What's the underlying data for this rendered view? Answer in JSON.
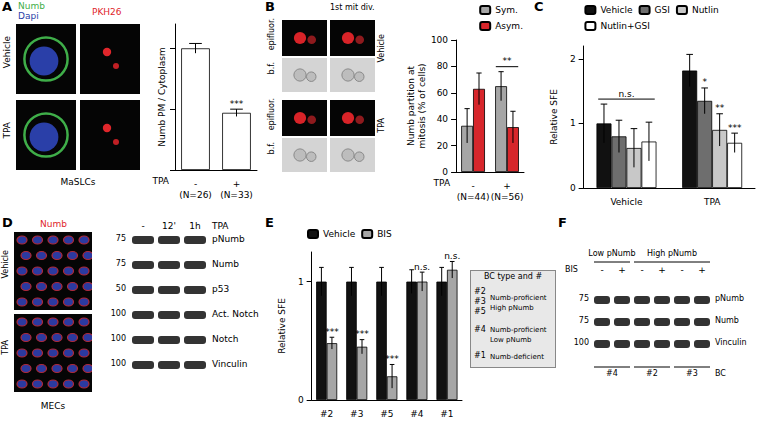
{
  "chart_data": [
    {
      "type": "bar",
      "title": "A",
      "y_label": "Numb PM / Cytoplasm",
      "x_label": "TPA",
      "categories": [
        "-",
        "+"
      ],
      "category_notes": [
        "(N=26)",
        "(N=33)"
      ],
      "series": [
        {
          "color": "#ffffff",
          "values": [
            1.0,
            0.47
          ],
          "errors": [
            0.04,
            0.03
          ],
          "annotations": [
            null,
            "***"
          ]
        }
      ],
      "ylim": [
        0,
        1.2
      ],
      "yticks": [
        0,
        0.5,
        1
      ],
      "tick_labels": "x"
    },
    {
      "type": "bar",
      "title": "B",
      "y_label": "Numb partition at mitosis (% of cells)",
      "x_label": "TPA",
      "categories": [
        "-",
        "+"
      ],
      "category_notes": [
        "(N=44)",
        "(N=56)"
      ],
      "series": [
        {
          "name": "Sym.",
          "color": "#a6a6a6",
          "values": [
            35,
            65
          ],
          "errors": [
            13,
            11
          ]
        },
        {
          "name": "Asym.",
          "color": "#d7262b",
          "values": [
            63,
            34
          ],
          "errors": [
            12,
            12
          ]
        }
      ],
      "group_annotations": [
        null,
        "**"
      ],
      "ylim": [
        0,
        100
      ],
      "yticks": [
        0,
        20,
        40,
        60,
        80,
        100
      ],
      "legend": "upper right"
    },
    {
      "type": "bar",
      "title": "C",
      "y_label": "Relative SFE",
      "categories": [
        "Vehicle",
        "TPA"
      ],
      "series": [
        {
          "name": "Vehicle",
          "color": "#111111",
          "values": [
            1.0,
            1.82
          ],
          "errors": [
            0.3,
            0.25
          ]
        },
        {
          "name": "GSI",
          "color": "#6e6e6e",
          "values": [
            0.8,
            1.35
          ],
          "errors": [
            0.25,
            0.2
          ],
          "annotations": [
            null,
            "*"
          ]
        },
        {
          "name": "Nutlin",
          "color": "#c8c8c8",
          "values": [
            0.62,
            0.9
          ],
          "errors": [
            0.3,
            0.25
          ],
          "annotations": [
            null,
            "**"
          ]
        },
        {
          "name": "Nutlin+GSI",
          "color": "#ffffff",
          "values": [
            0.72,
            0.7
          ],
          "errors": [
            0.3,
            0.15
          ],
          "annotations": [
            null,
            "***"
          ]
        }
      ],
      "group_annotations": [
        "n.s.",
        null
      ],
      "ylim": [
        0,
        2.2
      ],
      "yticks": [
        0,
        1,
        2
      ],
      "legend": "top"
    },
    {
      "type": "bar",
      "title": "E",
      "y_label": "Relative SFE",
      "categories": [
        "#2",
        "#3",
        "#5",
        "#4",
        "#1"
      ],
      "series": [
        {
          "name": "Vehicle",
          "color": "#111111",
          "values": [
            1,
            1,
            1,
            1,
            1
          ],
          "errors": [
            0.12,
            0.12,
            0.12,
            0.1,
            0.12
          ]
        },
        {
          "name": "BIS",
          "color": "#a6a6a6",
          "values": [
            0.48,
            0.45,
            0.2,
            1.0,
            1.1
          ],
          "errors": [
            0.05,
            0.06,
            0.1,
            0.08,
            0.07
          ],
          "annotations": [
            "***",
            "***",
            "***",
            "n.s.",
            "n.s."
          ]
        }
      ],
      "ylim": [
        0,
        1.25
      ],
      "yticks": [
        0,
        1
      ],
      "legend": "upper left"
    }
  ],
  "figure": {
    "A": {
      "letter": "A",
      "image_header": [
        "Numb",
        "Dapi",
        "PKH26"
      ],
      "rows": [
        "Vehicle",
        "TPA"
      ],
      "caption": "MaSLCs"
    },
    "B": {
      "letter": "B",
      "header": "1st mit div.",
      "modes": [
        "epifluor.",
        "b.f."
      ],
      "rows": [
        "Vehicle",
        "TPA"
      ]
    },
    "D": {
      "letter": "D",
      "stain": "Numb",
      "rows": [
        "Vehicle",
        "TPA"
      ],
      "caption": "MECs",
      "blot": {
        "treatment": "TPA",
        "lanes": [
          "-",
          "12'",
          "1h"
        ],
        "bands": [
          {
            "label": "pNumb",
            "mw": 75
          },
          {
            "label": "Numb",
            "mw": 75
          },
          {
            "label": "p53",
            "mw": 50
          },
          {
            "label": "Act. Notch",
            "mw": 100
          },
          {
            "label": "Notch",
            "mw": 100
          },
          {
            "label": "Vinculin",
            "mw": 100
          }
        ]
      }
    },
    "E": {
      "key": {
        "title": "BC type and #",
        "rows": [
          {
            "ids": [
              "#2",
              "#3",
              "#5"
            ],
            "text": [
              "Numb-proficient",
              "High pNumb"
            ]
          },
          {
            "ids": [
              "#4"
            ],
            "text": [
              "Numb-proficient",
              "Low pNumb"
            ]
          },
          {
            "ids": [
              "#1"
            ],
            "text": [
              "Numb-deficient"
            ]
          }
        ]
      }
    },
    "F": {
      "letter": "F",
      "groups": [
        {
          "label": "Low pNumb",
          "lanes": 2
        },
        {
          "label": "High pNumb",
          "lanes": 4
        }
      ],
      "treatment": "BIS",
      "lanes": [
        "-",
        "+",
        "-",
        "+",
        "-",
        "+"
      ],
      "bands": [
        {
          "label": "pNumb",
          "mw": 75
        },
        {
          "label": "Numb",
          "mw": 75
        },
        {
          "label": "Vinculin",
          "mw": 100
        }
      ],
      "samples": [
        "#4",
        "#2",
        "#3"
      ],
      "sample_label": "BC"
    }
  }
}
